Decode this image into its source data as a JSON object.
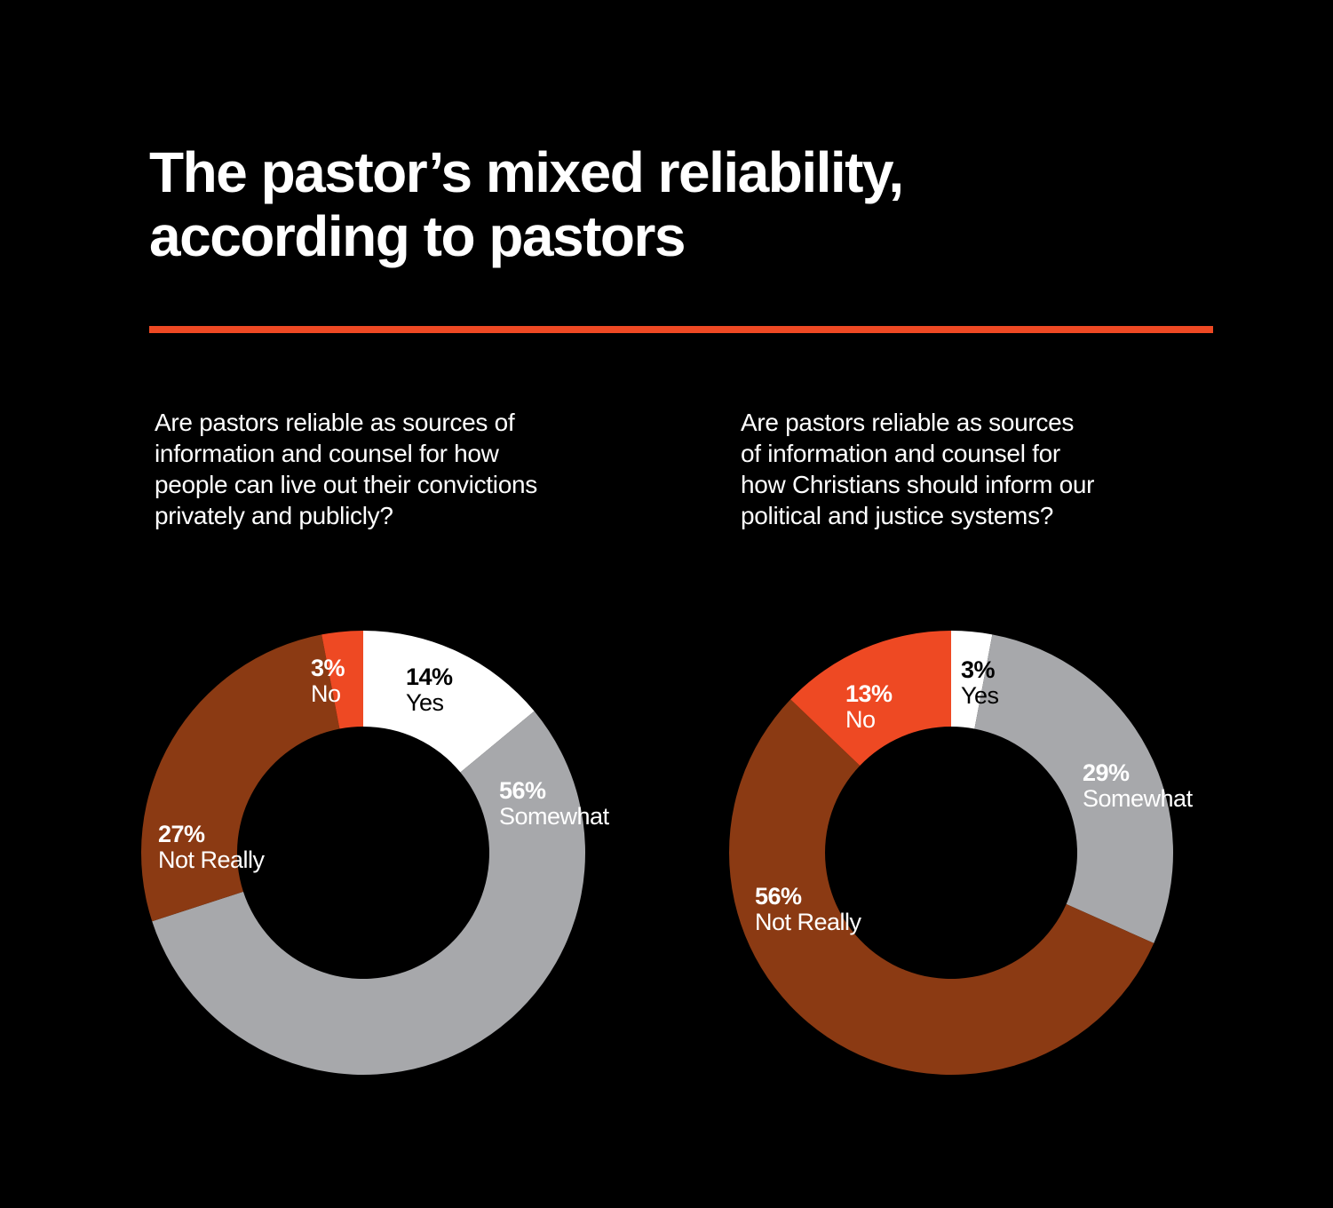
{
  "title": {
    "line1": "The pastor’s mixed reliability,",
    "line2": "according to pastors"
  },
  "colors": {
    "background": "#000000",
    "accent_rule": "#ee4923",
    "yes": "#ffffff",
    "somewhat": "#a7a8ab",
    "not_really": "#8b3a13",
    "no": "#ee4923",
    "label_dark": "#000000",
    "label_light": "#ffffff"
  },
  "chart_data": [
    {
      "type": "pie",
      "title": "Are pastors reliable as sources of information and counsel for how people can live out their convictions privately and publicly?",
      "question_lines": [
        "Are pastors reliable as sources of",
        "information and counsel for how",
        "people can live out their convictions",
        "privately and publicly?"
      ],
      "categories": [
        "Yes",
        "Somewhat",
        "Not Really",
        "No"
      ],
      "values": [
        14,
        56,
        27,
        3
      ],
      "value_labels": [
        "14%",
        "56%",
        "27%",
        "3%"
      ],
      "colors": [
        "#ffffff",
        "#a7a8ab",
        "#8b3a13",
        "#ee4923"
      ],
      "label_colors": [
        "#000000",
        "#ffffff",
        "#ffffff",
        "#ffffff"
      ],
      "start": "12 o'clock, clockwise",
      "style": "donut"
    },
    {
      "type": "pie",
      "title": "Are pastors reliable as sources of information and counsel for how Christians should inform our political and justice systems?",
      "question_lines": [
        "Are pastors reliable as sources",
        "of information and counsel for",
        "how Christians should inform our",
        "political and justice systems?"
      ],
      "categories": [
        "Yes",
        "Somewhat",
        "Not Really",
        "No"
      ],
      "values": [
        3,
        29,
        56,
        13
      ],
      "value_labels": [
        "3%",
        "29%",
        "56%",
        "13%"
      ],
      "colors": [
        "#ffffff",
        "#a7a8ab",
        "#8b3a13",
        "#ee4923"
      ],
      "label_colors": [
        "#000000",
        "#ffffff",
        "#ffffff",
        "#ffffff"
      ],
      "start": "12 o'clock, clockwise",
      "style": "donut"
    }
  ]
}
